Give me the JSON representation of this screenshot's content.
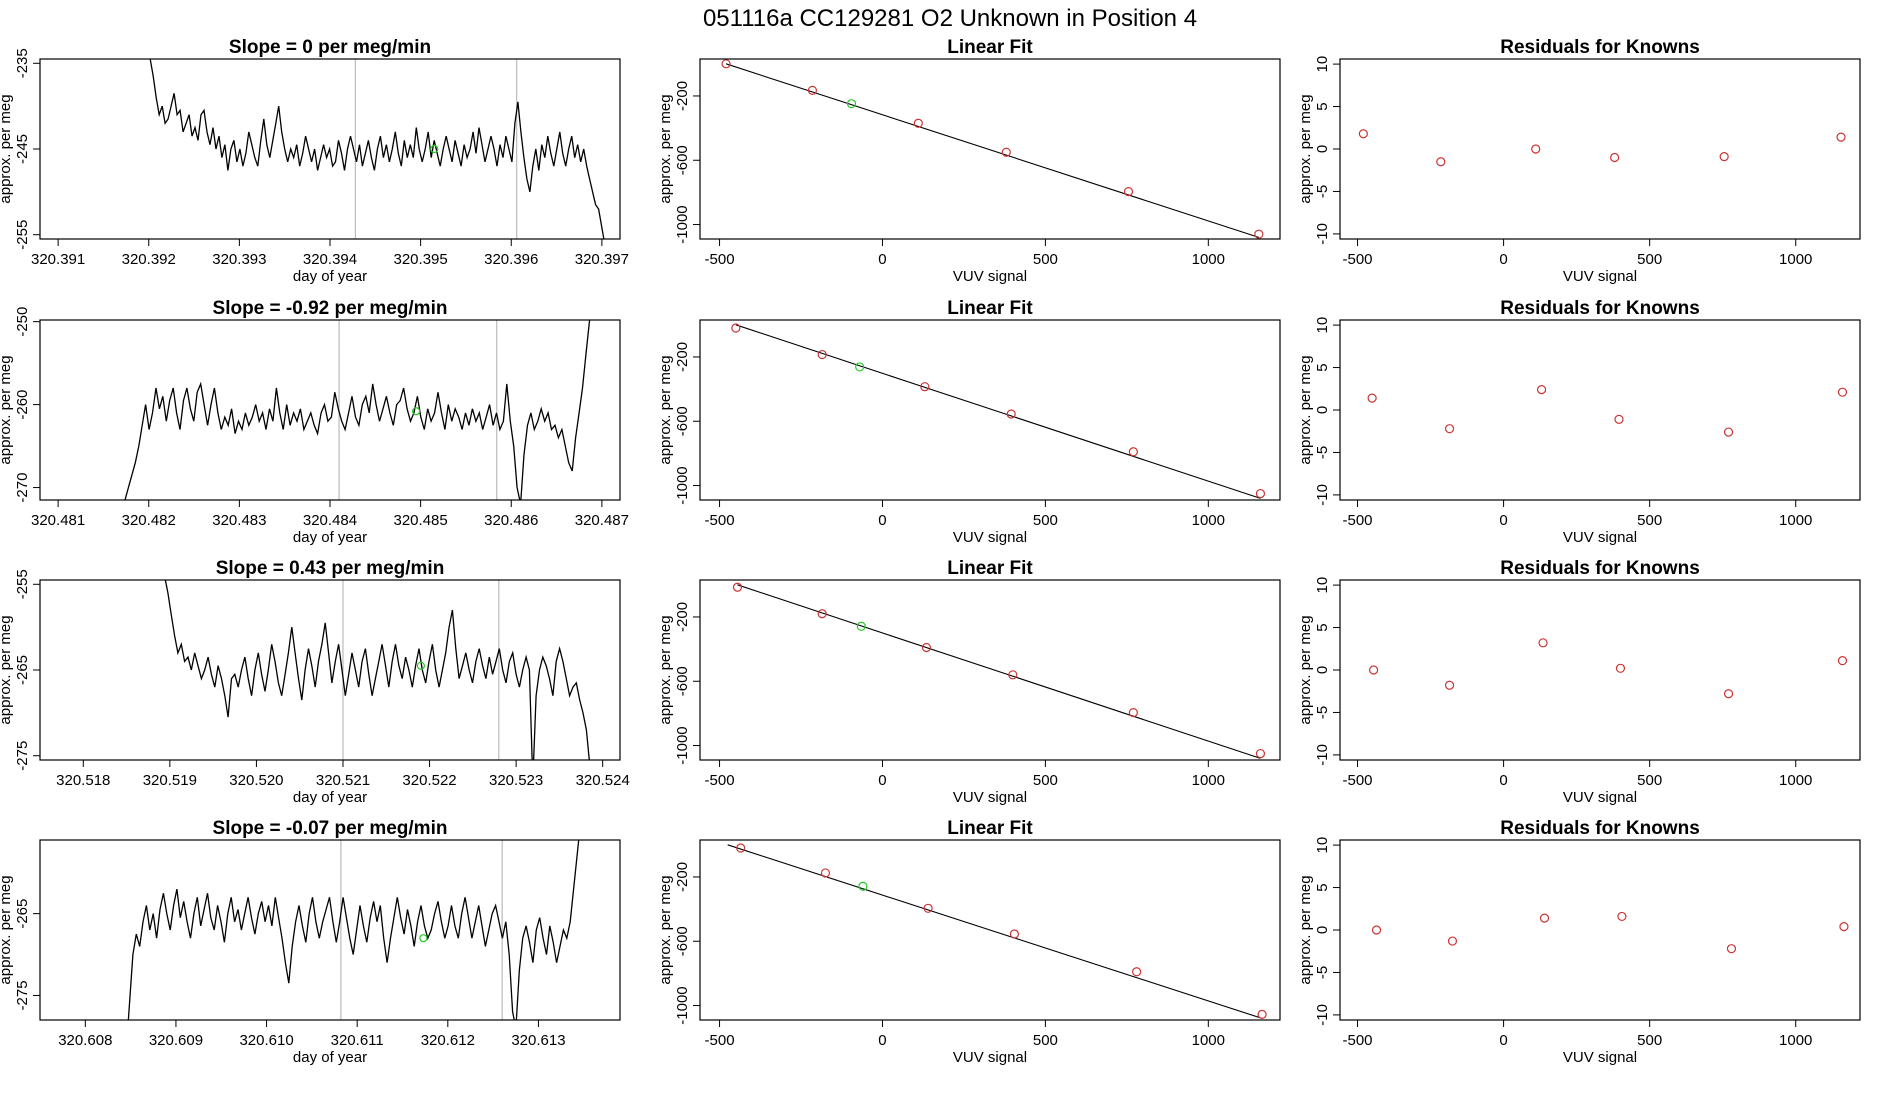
{
  "page_title": "051116a      CC129281   O2 Unknown in Position  4",
  "colors": {
    "line": "#000000",
    "known": "#cd3333",
    "unknown": "#22cc22",
    "vline": "#bbbbbb"
  },
  "chart_data": [
    {
      "type": "line",
      "row": 0,
      "title": "Slope =  0  per meg/min",
      "xlabel": "day of year",
      "ylabel": "approx. per meg",
      "xlim": [
        320.3908,
        320.3972
      ],
      "ylim": [
        -255.5,
        -234.5
      ],
      "xticks": [
        "320.391",
        "320.392",
        "320.393",
        "320.394",
        "320.395",
        "320.396",
        "320.397"
      ],
      "yticks": [
        "-235",
        "-245",
        "-255"
      ],
      "vlines": [
        320.39428,
        320.39606
      ],
      "unknown_point": [
        320.39515,
        -245.0
      ],
      "x_start": 320.39195,
      "x_end": 320.39703,
      "y_series": [
        -231,
        -233,
        -234.5,
        -236.5,
        -239,
        -241,
        -240,
        -242,
        -241.5,
        -240,
        -238.5,
        -241,
        -240.5,
        -243,
        -242,
        -241,
        -243.5,
        -242.5,
        -244,
        -241,
        -240.5,
        -243,
        -244.5,
        -242.5,
        -245,
        -243.5,
        -246,
        -244.5,
        -247.5,
        -245,
        -244,
        -246.5,
        -245,
        -247,
        -245.5,
        -243,
        -244.5,
        -246,
        -247,
        -244,
        -241.5,
        -244.5,
        -246,
        -244,
        -242,
        -240,
        -243,
        -245,
        -246.5,
        -245,
        -246,
        -244.5,
        -247,
        -245.5,
        -243.5,
        -245,
        -246.5,
        -245,
        -247.5,
        -246,
        -244.5,
        -246,
        -245,
        -247,
        -246.5,
        -244,
        -245.5,
        -247.5,
        -245,
        -243.5,
        -245,
        -246.5,
        -244.5,
        -247,
        -245.5,
        -244,
        -246,
        -247.5,
        -245,
        -243.5,
        -246,
        -244.5,
        -246.5,
        -245,
        -243,
        -245.5,
        -247,
        -244,
        -246,
        -244.5,
        -246,
        -242.5,
        -245,
        -246.5,
        -245,
        -243,
        -246,
        -244,
        -245.5,
        -247,
        -245,
        -243.5,
        -245,
        -246.5,
        -244,
        -245.5,
        -247,
        -244.5,
        -246,
        -245,
        -243,
        -245.5,
        -242.5,
        -244.5,
        -246.5,
        -245,
        -243.5,
        -245,
        -247,
        -244.5,
        -246,
        -243.5,
        -245,
        -246.5,
        -242,
        -239.5,
        -243,
        -246,
        -248.5,
        -250,
        -247,
        -245,
        -247.5,
        -244.5,
        -246,
        -243.5,
        -245.5,
        -247,
        -245,
        -243,
        -245.5,
        -247,
        -245,
        -243.5,
        -246,
        -244.5,
        -246.5,
        -245,
        -247,
        -248.5,
        -250,
        -251.5,
        -252,
        -254,
        -256
      ]
    },
    {
      "type": "scatter",
      "row": 0,
      "title": "Linear Fit",
      "xlabel": "VUV signal",
      "ylabel": "approx. per meg",
      "xlim": [
        -560,
        1220
      ],
      "ylim": [
        -1090,
        30
      ],
      "xticks": [
        "-500",
        "0",
        "500",
        "1000"
      ],
      "yticks": [
        "-200",
        "-600",
        "-1000"
      ],
      "fit_line": [
        [
          -480,
          0
        ],
        [
          1155,
          -1080
        ]
      ],
      "known_points": [
        [
          -480,
          0
        ],
        [
          -215,
          -165
        ],
        [
          110,
          -370
        ],
        [
          380,
          -550
        ],
        [
          755,
          -795
        ],
        [
          1155,
          -1060
        ]
      ],
      "unknown_point": [
        -95,
        -248
      ]
    },
    {
      "type": "scatter",
      "row": 0,
      "title": "Residuals for Knowns",
      "xlabel": "VUV signal",
      "ylabel": "approx. per meg",
      "xlim": [
        -560,
        1220
      ],
      "ylim": [
        -10.6,
        10.6
      ],
      "xticks": [
        "-500",
        "0",
        "500",
        "1000"
      ],
      "yticks": [
        "10",
        "5",
        "0",
        "-5",
        "-10"
      ],
      "points": [
        [
          -480,
          1.8
        ],
        [
          -215,
          -1.5
        ],
        [
          110,
          0.0
        ],
        [
          380,
          -1.0
        ],
        [
          755,
          -0.9
        ],
        [
          1155,
          1.4
        ]
      ]
    },
    {
      "type": "line",
      "row": 1,
      "title": "Slope =  -0.92  per meg/min",
      "xlabel": "day of year",
      "ylabel": "approx. per meg",
      "xlim": [
        320.4808,
        320.4872
      ],
      "ylim": [
        -271.5,
        -249.8
      ],
      "xticks": [
        "320.481",
        "320.482",
        "320.483",
        "320.484",
        "320.485",
        "320.486",
        "320.487"
      ],
      "yticks": [
        "-250",
        "-260",
        "-270"
      ],
      "vlines": [
        320.4841,
        320.48584
      ],
      "unknown_point": [
        320.48495,
        -260.8
      ],
      "x_start": 320.4817,
      "x_end": 320.4869,
      "y_series": [
        -274,
        -271.5,
        -270,
        -268.5,
        -267,
        -265,
        -262.5,
        -260,
        -263,
        -261,
        -258,
        -260.5,
        -259,
        -262,
        -259.5,
        -258,
        -261,
        -263,
        -259.5,
        -258,
        -260.5,
        -262,
        -258.5,
        -257.5,
        -260,
        -262.5,
        -260,
        -258,
        -261,
        -263,
        -261.5,
        -262.5,
        -260.5,
        -263.5,
        -262,
        -263,
        -261,
        -262.5,
        -261.5,
        -260,
        -262,
        -261,
        -263,
        -260.5,
        -262,
        -258,
        -261,
        -263,
        -260,
        -262.5,
        -261,
        -262,
        -260.5,
        -263,
        -262,
        -261,
        -262.5,
        -263.5,
        -261,
        -260,
        -262,
        -261.5,
        -258.5,
        -260.5,
        -262,
        -263,
        -261,
        -259,
        -261.5,
        -262.5,
        -260,
        -259,
        -261,
        -257.5,
        -260,
        -262,
        -260.5,
        -259,
        -261,
        -262.5,
        -260,
        -259.5,
        -258,
        -260.5,
        -262,
        -261,
        -259,
        -261.5,
        -263,
        -260.5,
        -262,
        -261,
        -258.5,
        -261,
        -263,
        -260,
        -262,
        -260.5,
        -261.5,
        -263,
        -261,
        -262.5,
        -260.5,
        -262,
        -261,
        -263,
        -261.5,
        -260,
        -262.5,
        -261,
        -263,
        -262,
        -257.5,
        -262,
        -265,
        -270,
        -272,
        -266,
        -262.5,
        -261,
        -263,
        -262,
        -260.5,
        -262,
        -261,
        -263,
        -262.5,
        -264,
        -263,
        -265,
        -267,
        -268,
        -264,
        -261,
        -258,
        -254,
        -250,
        -247
      ]
    },
    {
      "type": "scatter",
      "row": 1,
      "title": "Linear Fit",
      "xlabel": "VUV signal",
      "ylabel": "approx. per meg",
      "xlim": [
        -560,
        1220
      ],
      "ylim": [
        -1090,
        30
      ],
      "xticks": [
        "-500",
        "0",
        "500",
        "1000"
      ],
      "yticks": [
        "-200",
        "-600",
        "-1000"
      ],
      "fit_line": [
        [
          -450,
          0
        ],
        [
          1160,
          -1080
        ]
      ],
      "known_points": [
        [
          -450,
          -20
        ],
        [
          -185,
          -185
        ],
        [
          130,
          -385
        ],
        [
          395,
          -555
        ],
        [
          770,
          -790
        ],
        [
          1160,
          -1050
        ]
      ],
      "unknown_point": [
        -70,
        -262
      ]
    },
    {
      "type": "scatter",
      "row": 1,
      "title": "Residuals for Knowns",
      "xlabel": "VUV signal",
      "ylabel": "approx. per meg",
      "xlim": [
        -560,
        1220
      ],
      "ylim": [
        -10.6,
        10.6
      ],
      "xticks": [
        "-500",
        "0",
        "500",
        "1000"
      ],
      "yticks": [
        "10",
        "5",
        "0",
        "-5",
        "-10"
      ],
      "points": [
        [
          -450,
          1.4
        ],
        [
          -185,
          -2.2
        ],
        [
          130,
          2.4
        ],
        [
          395,
          -1.1
        ],
        [
          770,
          -2.6
        ],
        [
          1160,
          2.1
        ]
      ]
    },
    {
      "type": "line",
      "row": 2,
      "title": "Slope =  0.43  per meg/min",
      "xlabel": "day of year",
      "ylabel": "approx. per meg",
      "xlim": [
        320.5175,
        320.5242
      ],
      "ylim": [
        -275.5,
        -254.5
      ],
      "xticks": [
        "320.518",
        "320.519",
        "320.520",
        "320.521",
        "320.522",
        "320.523",
        "320.524"
      ],
      "yticks": [
        "-255",
        "-265",
        "-275"
      ],
      "vlines": [
        320.521,
        320.5228
      ],
      "unknown_point": [
        320.5219,
        -264.5
      ],
      "x_start": 320.5189,
      "x_end": 320.52385,
      "y_series": [
        -252,
        -254,
        -256,
        -258.5,
        -261,
        -263,
        -262,
        -264,
        -263.5,
        -265,
        -263,
        -264.5,
        -266,
        -265,
        -263.5,
        -265.5,
        -267,
        -264.5,
        -266,
        -268,
        -270.5,
        -266,
        -265.5,
        -267,
        -265,
        -263.5,
        -266,
        -268,
        -265,
        -263,
        -265.5,
        -267.5,
        -265,
        -262,
        -264,
        -266.5,
        -268,
        -265.5,
        -263,
        -260,
        -263,
        -266,
        -268.5,
        -265,
        -262.5,
        -264.5,
        -267,
        -264,
        -262,
        -259.5,
        -263,
        -266.5,
        -264,
        -262,
        -265,
        -268,
        -265.5,
        -263,
        -265,
        -267,
        -264,
        -262.5,
        -265.5,
        -268,
        -266,
        -264,
        -262,
        -264.5,
        -267,
        -264,
        -262,
        -264.5,
        -266,
        -263.5,
        -265,
        -267,
        -264.5,
        -262.5,
        -265,
        -266.5,
        -264,
        -262,
        -265,
        -267,
        -265,
        -263,
        -260,
        -258,
        -262.5,
        -266,
        -264.5,
        -263,
        -265,
        -266.5,
        -264,
        -262.5,
        -264.5,
        -266,
        -263.5,
        -265.5,
        -264,
        -262.5,
        -265,
        -266.5,
        -264,
        -263,
        -265.5,
        -267,
        -265,
        -263.5,
        -265,
        -278,
        -268,
        -265,
        -263.5,
        -264.5,
        -266,
        -268,
        -264,
        -262.5,
        -264,
        -266,
        -268,
        -267,
        -266.5,
        -268.5,
        -270,
        -272,
        -276
      ]
    },
    {
      "type": "scatter",
      "row": 2,
      "title": "Linear Fit",
      "xlabel": "VUV signal",
      "ylabel": "approx. per meg",
      "xlim": [
        -560,
        1220
      ],
      "ylim": [
        -1090,
        30
      ],
      "xticks": [
        "-500",
        "0",
        "500",
        "1000"
      ],
      "yticks": [
        "-200",
        "-600",
        "-1000"
      ],
      "fit_line": [
        [
          -445,
          0
        ],
        [
          1160,
          -1080
        ]
      ],
      "known_points": [
        [
          -445,
          -15
        ],
        [
          -185,
          -180
        ],
        [
          135,
          -390
        ],
        [
          400,
          -560
        ],
        [
          770,
          -795
        ],
        [
          1160,
          -1050
        ]
      ],
      "unknown_point": [
        -65,
        -258
      ]
    },
    {
      "type": "scatter",
      "row": 2,
      "title": "Residuals for Knowns",
      "xlabel": "VUV signal",
      "ylabel": "approx. per meg",
      "xlim": [
        -560,
        1220
      ],
      "ylim": [
        -10.6,
        10.6
      ],
      "xticks": [
        "-500",
        "0",
        "500",
        "1000"
      ],
      "yticks": [
        "10",
        "5",
        "0",
        "-5",
        "-10"
      ],
      "points": [
        [
          -445,
          0.0
        ],
        [
          -185,
          -1.8
        ],
        [
          135,
          3.2
        ],
        [
          400,
          0.2
        ],
        [
          770,
          -2.8
        ],
        [
          1160,
          1.1
        ]
      ]
    },
    {
      "type": "line",
      "row": 3,
      "title": "Slope =  -0.07  per meg/min",
      "xlabel": "day of year",
      "ylabel": "approx. per meg",
      "xlim": [
        320.6075,
        320.6139
      ],
      "ylim": [
        -278,
        -256
      ],
      "xticks": [
        "320.608",
        "320.609",
        "320.610",
        "320.611",
        "320.612",
        "320.613"
      ],
      "yticks": [
        "-265",
        "-275"
      ],
      "vlines": [
        320.61082,
        320.6126
      ],
      "unknown_point": [
        320.61173,
        -268.0
      ],
      "x_start": 320.60845,
      "x_end": 320.6135,
      "y_series": [
        -282,
        -276,
        -270,
        -267.5,
        -269,
        -266,
        -264,
        -267,
        -265,
        -268,
        -264.5,
        -262.5,
        -265,
        -267,
        -264,
        -262,
        -265.5,
        -263.5,
        -266,
        -268,
        -265,
        -263,
        -266.5,
        -264.5,
        -262.5,
        -265.5,
        -267,
        -264,
        -266,
        -268.5,
        -265,
        -263,
        -266,
        -264.5,
        -267,
        -265,
        -263,
        -265.5,
        -267.5,
        -265,
        -263.5,
        -266,
        -264,
        -266.5,
        -263,
        -265.5,
        -268,
        -271,
        -273.5,
        -269,
        -266,
        -264,
        -266.5,
        -268.5,
        -265,
        -263,
        -266,
        -268,
        -266,
        -264.5,
        -263,
        -266,
        -268.5,
        -266,
        -263,
        -265.5,
        -268,
        -270,
        -267,
        -264,
        -266.5,
        -268.5,
        -265.5,
        -263.5,
        -266,
        -264,
        -268,
        -271,
        -268,
        -265.5,
        -263,
        -265.5,
        -267.5,
        -264.5,
        -266.5,
        -269,
        -266,
        -264,
        -266.5,
        -268,
        -267,
        -265,
        -263.5,
        -266,
        -268,
        -266.5,
        -264,
        -266.5,
        -268,
        -265,
        -263,
        -265.5,
        -268,
        -266,
        -264,
        -266.5,
        -269,
        -267,
        -265,
        -264,
        -266,
        -268,
        -266,
        -270,
        -277,
        -279,
        -272,
        -268,
        -266.5,
        -268.5,
        -271,
        -267,
        -265.5,
        -268,
        -270,
        -266.5,
        -268.5,
        -271,
        -269,
        -267,
        -268,
        -266,
        -262,
        -258,
        -254,
        -250
      ]
    },
    {
      "type": "scatter",
      "row": 3,
      "title": "Linear Fit",
      "xlabel": "VUV signal",
      "ylabel": "approx. per meg",
      "xlim": [
        -560,
        1220
      ],
      "ylim": [
        -1090,
        30
      ],
      "xticks": [
        "-500",
        "0",
        "500",
        "1000"
      ],
      "yticks": [
        "-200",
        "-600",
        "-1000"
      ],
      "fit_line": [
        [
          -475,
          0
        ],
        [
          1165,
          -1080
        ]
      ],
      "known_points": [
        [
          -435,
          -20
        ],
        [
          -175,
          -175
        ],
        [
          140,
          -395
        ],
        [
          405,
          -555
        ],
        [
          780,
          -790
        ],
        [
          1165,
          -1055
        ]
      ],
      "unknown_point": [
        -60,
        -258
      ]
    },
    {
      "type": "scatter",
      "row": 3,
      "title": "Residuals for Knowns",
      "xlabel": "VUV signal",
      "ylabel": "approx. per meg",
      "xlim": [
        -560,
        1220
      ],
      "ylim": [
        -10.6,
        10.6
      ],
      "xticks": [
        "-500",
        "0",
        "500",
        "1000"
      ],
      "yticks": [
        "10",
        "5",
        "0",
        "-5",
        "-10"
      ],
      "points": [
        [
          -435,
          0.0
        ],
        [
          -175,
          -1.3
        ],
        [
          140,
          1.4
        ],
        [
          405,
          1.6
        ],
        [
          780,
          -2.2
        ],
        [
          1165,
          0.4
        ]
      ]
    }
  ]
}
